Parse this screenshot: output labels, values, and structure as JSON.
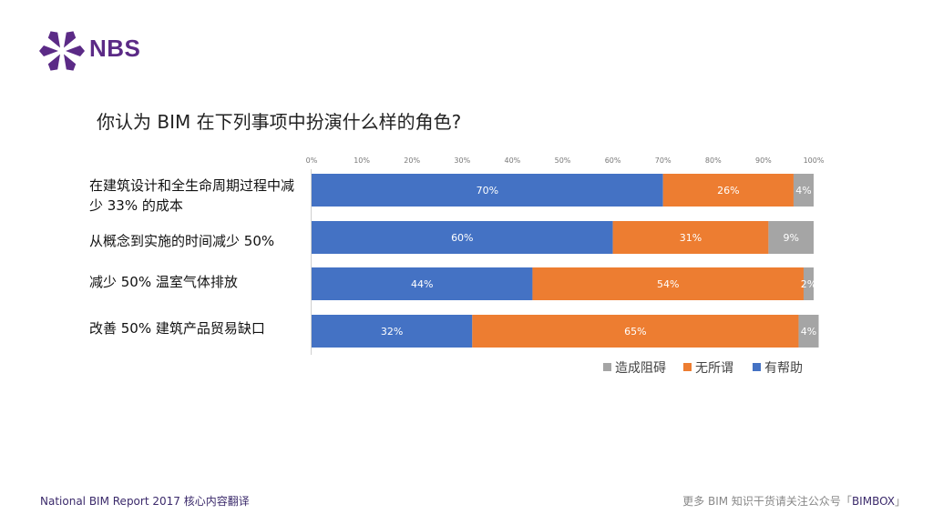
{
  "logo": {
    "text": "NBS",
    "color": "#5b2a86"
  },
  "question": "你认为 BIM 在下列事项中扮演什么样的角色?",
  "chart_data": {
    "type": "bar",
    "orientation": "horizontal",
    "stacked": true,
    "title": "",
    "categories": [
      "在建筑设计和全生命周期过程中减少 33% 的成本",
      "从概念到实施的时间减少 50%",
      "减少 50% 温室气体排放",
      "改善 50% 建筑产品贸易缺口"
    ],
    "series": [
      {
        "name": "有帮助",
        "color": "#4472c4",
        "values": [
          70,
          60,
          44,
          32
        ],
        "labels": [
          "70%",
          "60%",
          "44%",
          "32%"
        ]
      },
      {
        "name": "无所谓",
        "color": "#ed7d31",
        "values": [
          26,
          31,
          54,
          65
        ],
        "labels": [
          "26%",
          "31%",
          "54%",
          "65%"
        ]
      },
      {
        "name": "造成阻碍",
        "color": "#a5a5a5",
        "values": [
          4,
          9,
          2,
          4
        ],
        "labels": [
          "4%",
          "9%",
          "2%",
          "4%"
        ]
      }
    ],
    "xlim": [
      0,
      100
    ],
    "xticks": [
      "0%",
      "10%",
      "20%",
      "30%",
      "40%",
      "50%",
      "60%",
      "70%",
      "80%",
      "90%",
      "100%"
    ],
    "legend": [
      "造成阻碍",
      "无所谓",
      "有帮助"
    ],
    "legend_position": "bottom-right"
  },
  "footer": {
    "left": "National BIM Report 2017  核心内容翻译",
    "right_prefix": "更多 BIM 知识干货请关注公众号「",
    "right_brand": "BIMBOX",
    "right_suffix": "」"
  }
}
